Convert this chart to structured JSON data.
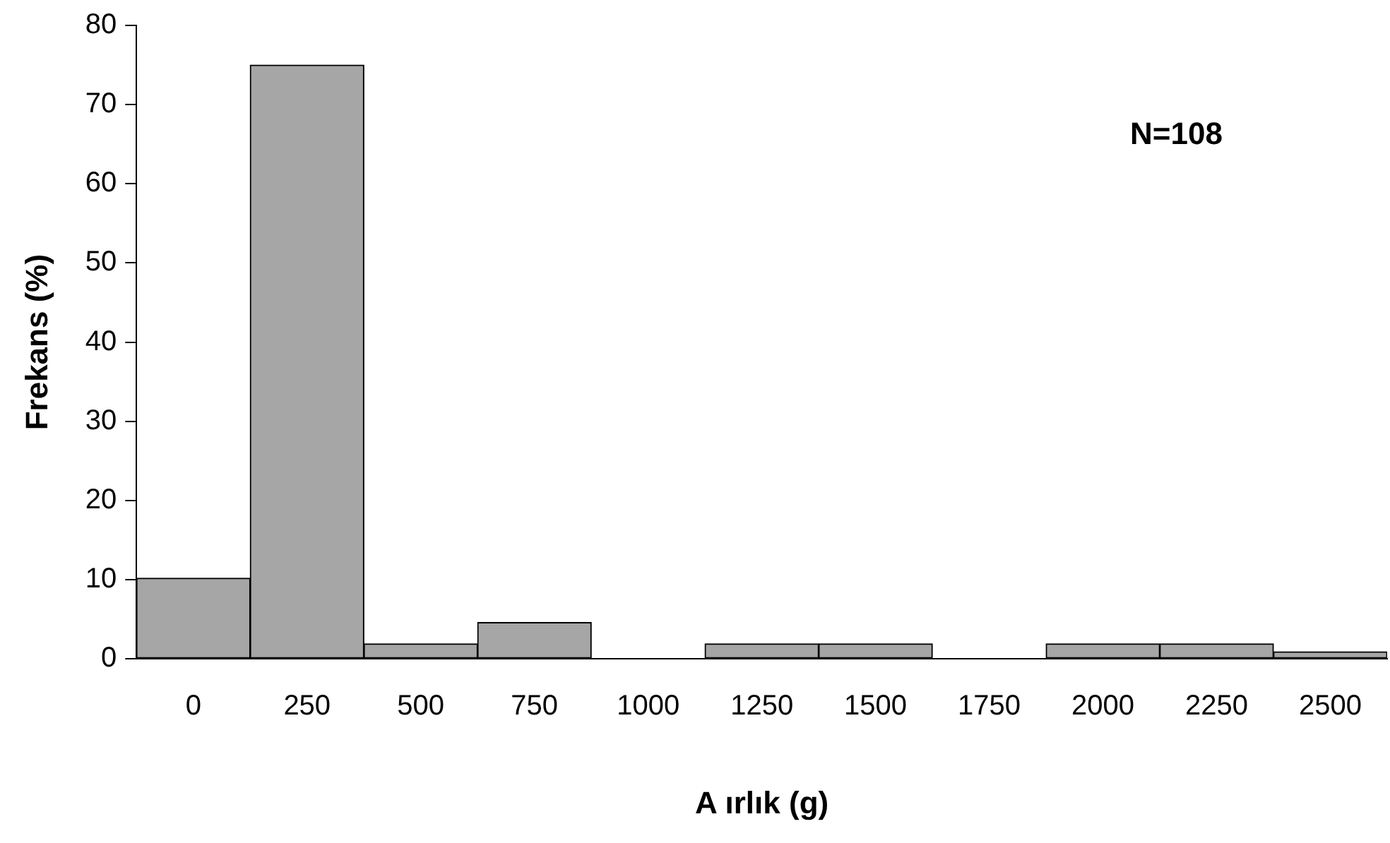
{
  "chart_data": {
    "type": "bar",
    "xlabel": "A ırlık (g)",
    "ylabel": "Frekans (%)",
    "categories": [
      "0",
      "250",
      "500",
      "750",
      "1000",
      "1250",
      "1500",
      "1750",
      "2000",
      "2250",
      "2500"
    ],
    "values": [
      10.2,
      75,
      1.9,
      4.6,
      0,
      1.9,
      1.9,
      0,
      1.9,
      1.9,
      0.9
    ],
    "color": "#a6a6a6",
    "ylim": [
      0,
      80
    ],
    "yticks": [
      0,
      10,
      20,
      30,
      40,
      50,
      60,
      70,
      80
    ],
    "grid": false,
    "legend": false,
    "annotations": [
      "N=108"
    ]
  }
}
